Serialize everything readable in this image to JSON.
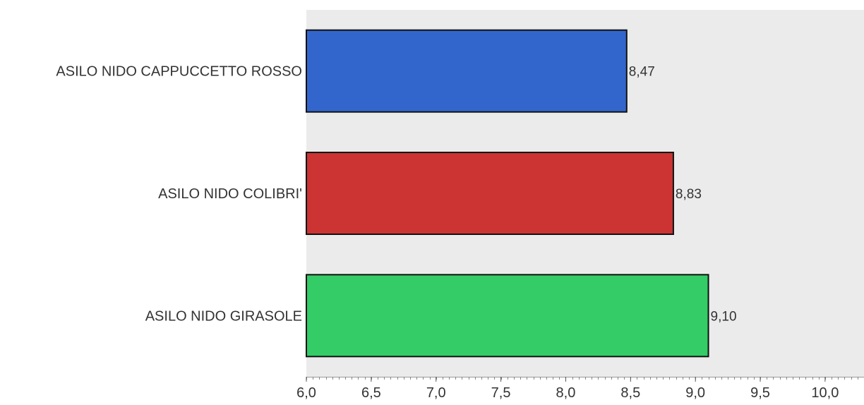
{
  "chart_data": {
    "type": "bar",
    "orientation": "horizontal",
    "categories": [
      "ASILO NIDO CAPPUCCETTO ROSSO",
      "ASILO NIDO COLIBRI'",
      "ASILO NIDO GIRASOLE"
    ],
    "values": [
      8.47,
      8.83,
      9.1
    ],
    "value_labels": [
      "8,47",
      "8,83",
      "9,10"
    ],
    "colors": [
      "#3366cc",
      "#cc3333",
      "#33cc66"
    ],
    "plot_background": "#ebebeb",
    "bar_border_color": "#111111",
    "xlim": [
      6.0,
      10.3
    ],
    "x_ticks": [
      6.0,
      6.5,
      7.0,
      7.5,
      8.0,
      8.5,
      9.0,
      9.5,
      10.0
    ],
    "x_tick_labels": [
      "6,0",
      "6,5",
      "7,0",
      "7,5",
      "8,0",
      "8,5",
      "9,0",
      "9,5",
      "10,0"
    ],
    "title": "",
    "xlabel": "",
    "ylabel": "",
    "grid": false,
    "legend": "none"
  }
}
